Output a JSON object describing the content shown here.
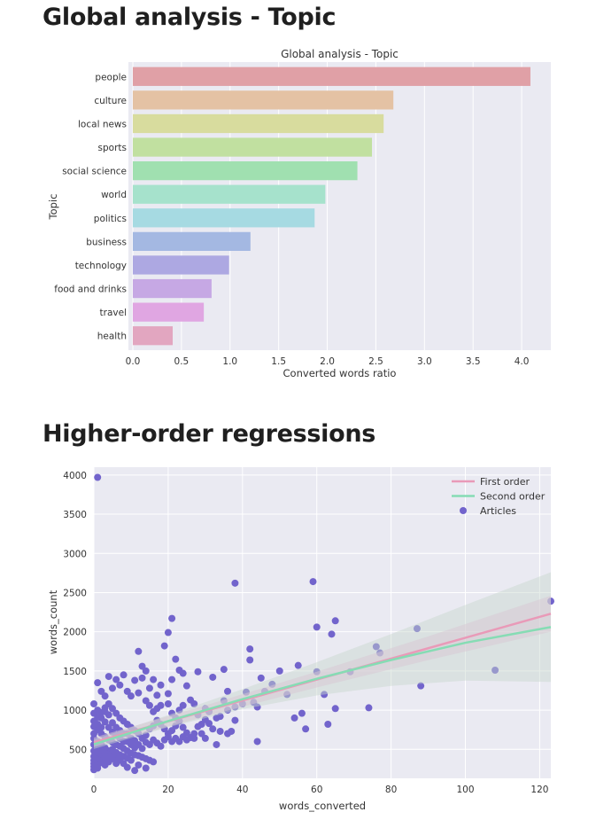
{
  "sections": [
    {
      "heading": "Global analysis - Topic"
    },
    {
      "heading": "Higher-order regressions"
    }
  ],
  "chart_data": [
    {
      "type": "bar",
      "orientation": "horizontal",
      "title": "Global analysis - Topic",
      "xlabel": "Converted words ratio",
      "ylabel": "Topic",
      "xlim": [
        0,
        4.3
      ],
      "xticks": [
        "0.0",
        "0.5",
        "1.0",
        "1.5",
        "2.0",
        "2.5",
        "3.0",
        "3.5",
        "4.0"
      ],
      "grid": true,
      "categories": [
        "people",
        "culture",
        "local news",
        "sports",
        "social science",
        "world",
        "politics",
        "business",
        "technology",
        "food and drinks",
        "travel",
        "health"
      ],
      "values": [
        4.09,
        2.68,
        2.58,
        2.46,
        2.31,
        1.98,
        1.87,
        1.21,
        0.99,
        0.81,
        0.73,
        0.41
      ],
      "colors": [
        "#e0a0a6",
        "#e4c2a4",
        "#d8dc9e",
        "#c1e0a0",
        "#a0e0b0",
        "#a6e2cc",
        "#a6dae2",
        "#a4b8e2",
        "#ada8e2",
        "#c6a8e4",
        "#e0a6e2",
        "#e2a6c0"
      ]
    },
    {
      "type": "scatter",
      "title": "",
      "xlabel": "words_converted",
      "ylabel": "words_count",
      "xlim": [
        0,
        123
      ],
      "ylim": [
        130,
        4100
      ],
      "xticks": [
        "0",
        "20",
        "40",
        "60",
        "80",
        "100",
        "120"
      ],
      "yticks": [
        "500",
        "1000",
        "1500",
        "2000",
        "2500",
        "3000",
        "3500",
        "4000"
      ],
      "grid": true,
      "legend_position": "top-right",
      "legend": [
        {
          "label": "First order",
          "kind": "line",
          "color": "#e99ab8"
        },
        {
          "label": "Second order",
          "kind": "line",
          "color": "#86dcb4"
        },
        {
          "label": "Articles",
          "kind": "marker",
          "color": "#7264cc"
        }
      ],
      "series": [
        {
          "name": "Articles",
          "color": "#7264cc",
          "points": [
            [
              1,
              3970
            ],
            [
              38,
              2620
            ],
            [
              59,
              2640
            ],
            [
              21,
              2170
            ],
            [
              60,
              2060
            ],
            [
              65,
              2140
            ],
            [
              64,
              1970
            ],
            [
              87,
              2040
            ],
            [
              123,
              2390
            ],
            [
              76,
              1810
            ],
            [
              77,
              1730
            ],
            [
              108,
              1510
            ],
            [
              88,
              1310
            ],
            [
              74,
              1030
            ],
            [
              69,
              1490
            ],
            [
              60,
              1490
            ],
            [
              55,
              1570
            ],
            [
              50,
              1500
            ],
            [
              45,
              1410
            ],
            [
              42,
              1780
            ],
            [
              42,
              1640
            ],
            [
              35,
              1520
            ],
            [
              36,
              1240
            ],
            [
              32,
              1420
            ],
            [
              28,
              1490
            ],
            [
              24,
              1470
            ],
            [
              22,
              1650
            ],
            [
              21,
              1390
            ],
            [
              20,
              1210
            ],
            [
              18,
              1320
            ],
            [
              17,
              1190
            ],
            [
              19,
              1820
            ],
            [
              20,
              1990
            ],
            [
              23,
              1510
            ],
            [
              25,
              1310
            ],
            [
              12,
              1750
            ],
            [
              13,
              1410
            ],
            [
              14,
              1500
            ],
            [
              13,
              1560
            ],
            [
              15,
              1280
            ],
            [
              16,
              1390
            ],
            [
              11,
              1380
            ],
            [
              8,
              1450
            ],
            [
              6,
              1390
            ],
            [
              4,
              1430
            ],
            [
              1,
              1350
            ],
            [
              2,
              1240
            ],
            [
              3,
              1180
            ],
            [
              5,
              1280
            ],
            [
              7,
              1320
            ],
            [
              9,
              1240
            ],
            [
              10,
              1180
            ],
            [
              12,
              1220
            ],
            [
              14,
              1120
            ],
            [
              15,
              1060
            ],
            [
              16,
              980
            ],
            [
              17,
              1020
            ],
            [
              18,
              1060
            ],
            [
              20,
              1080
            ],
            [
              21,
              960
            ],
            [
              22,
              900
            ],
            [
              23,
              1000
            ],
            [
              24,
              1060
            ],
            [
              26,
              1130
            ],
            [
              27,
              1080
            ],
            [
              28,
              940
            ],
            [
              29,
              820
            ],
            [
              30,
              1020
            ],
            [
              31,
              980
            ],
            [
              33,
              900
            ],
            [
              34,
              920
            ],
            [
              35,
              1120
            ],
            [
              36,
              1000
            ],
            [
              38,
              1040
            ],
            [
              40,
              1080
            ],
            [
              41,
              1230
            ],
            [
              43,
              1100
            ],
            [
              44,
              1040
            ],
            [
              46,
              1240
            ],
            [
              48,
              1330
            ],
            [
              52,
              1200
            ],
            [
              54,
              900
            ],
            [
              56,
              960
            ],
            [
              57,
              760
            ],
            [
              62,
              1200
            ],
            [
              63,
              820
            ],
            [
              65,
              1020
            ],
            [
              44,
              600
            ],
            [
              38,
              870
            ],
            [
              37,
              730
            ],
            [
              36,
              700
            ],
            [
              34,
              730
            ],
            [
              32,
              760
            ],
            [
              31,
              830
            ],
            [
              30,
              880
            ],
            [
              28,
              790
            ],
            [
              27,
              700
            ],
            [
              26,
              650
            ],
            [
              25,
              710
            ],
            [
              24,
              780
            ],
            [
              23,
              860
            ],
            [
              22,
              800
            ],
            [
              21,
              740
            ],
            [
              20,
              700
            ],
            [
              19,
              760
            ],
            [
              18,
              820
            ],
            [
              17,
              870
            ],
            [
              16,
              800
            ],
            [
              15,
              760
            ],
            [
              14,
              680
            ],
            [
              13,
              640
            ],
            [
              12,
              700
            ],
            [
              11,
              740
            ],
            [
              10,
              780
            ],
            [
              9,
              820
            ],
            [
              8,
              860
            ],
            [
              7,
              900
            ],
            [
              6,
              960
            ],
            [
              5,
              1020
            ],
            [
              4,
              1080
            ],
            [
              3,
              1030
            ],
            [
              2,
              970
            ],
            [
              1,
              910
            ],
            [
              0,
              860
            ],
            [
              0,
              790
            ],
            [
              1,
              750
            ],
            [
              2,
              700
            ],
            [
              3,
              660
            ],
            [
              4,
              620
            ],
            [
              5,
              590
            ],
            [
              6,
              560
            ],
            [
              7,
              540
            ],
            [
              8,
              510
            ],
            [
              9,
              480
            ],
            [
              10,
              450
            ],
            [
              11,
              430
            ],
            [
              12,
              420
            ],
            [
              13,
              400
            ],
            [
              14,
              380
            ],
            [
              15,
              360
            ],
            [
              16,
              340
            ],
            [
              12,
              300
            ],
            [
              14,
              260
            ],
            [
              11,
              230
            ],
            [
              9,
              270
            ],
            [
              8,
              320
            ],
            [
              7,
              360
            ],
            [
              6,
              400
            ],
            [
              5,
              440
            ],
            [
              4,
              480
            ],
            [
              3,
              520
            ],
            [
              2,
              560
            ],
            [
              1,
              600
            ],
            [
              0,
              640
            ],
            [
              0,
              560
            ],
            [
              0,
              480
            ],
            [
              0,
              410
            ],
            [
              0,
              360
            ],
            [
              0,
              320
            ],
            [
              0,
              280
            ],
            [
              0,
              240
            ],
            [
              1,
              260
            ],
            [
              1,
              300
            ],
            [
              1,
              350
            ],
            [
              1,
              400
            ],
            [
              1,
              460
            ],
            [
              1,
              520
            ],
            [
              2,
              330
            ],
            [
              2,
              380
            ],
            [
              2,
              440
            ],
            [
              2,
              500
            ],
            [
              3,
              300
            ],
            [
              3,
              350
            ],
            [
              3,
              400
            ],
            [
              3,
              450
            ],
            [
              4,
              340
            ],
            [
              4,
              410
            ],
            [
              5,
              380
            ],
            [
              5,
              500
            ],
            [
              6,
              320
            ],
            [
              6,
              460
            ],
            [
              7,
              430
            ],
            [
              8,
              410
            ],
            [
              9,
              390
            ],
            [
              10,
              360
            ],
            [
              11,
              520
            ],
            [
              12,
              560
            ],
            [
              13,
              510
            ],
            [
              14,
              590
            ],
            [
              15,
              560
            ],
            [
              16,
              620
            ],
            [
              17,
              580
            ],
            [
              18,
              540
            ],
            [
              19,
              620
            ],
            [
              20,
              660
            ],
            [
              21,
              600
            ],
            [
              22,
              640
            ],
            [
              23,
              600
            ],
            [
              24,
              660
            ],
            [
              25,
              620
            ],
            [
              27,
              640
            ],
            [
              29,
              700
            ],
            [
              30,
              640
            ],
            [
              33,
              560
            ],
            [
              3,
              850
            ],
            [
              4,
              780
            ],
            [
              5,
              720
            ],
            [
              6,
              680
            ],
            [
              7,
              640
            ],
            [
              8,
              600
            ],
            [
              9,
              700
            ],
            [
              10,
              640
            ],
            [
              11,
              610
            ],
            [
              2,
              900
            ],
            [
              1,
              1000
            ],
            [
              0,
              1080
            ],
            [
              0,
              960
            ],
            [
              5,
              840
            ],
            [
              6,
              780
            ],
            [
              7,
              740
            ],
            [
              8,
              700
            ],
            [
              9,
              600
            ],
            [
              10,
              560
            ],
            [
              4,
              940
            ],
            [
              3,
              980
            ],
            [
              1,
              820
            ],
            [
              0,
              700
            ],
            [
              2,
              780
            ]
          ]
        },
        {
          "name": "First order",
          "type": "line",
          "color": "#e99ab8",
          "x": [
            0,
            123
          ],
          "y": [
            590,
            2230
          ]
        },
        {
          "name": "Second order",
          "type": "line",
          "color": "#86dcb4",
          "x": [
            0,
            20,
            40,
            60,
            80,
            100,
            123
          ],
          "y": [
            565,
            860,
            1140,
            1400,
            1640,
            1860,
            2060
          ]
        }
      ]
    }
  ]
}
